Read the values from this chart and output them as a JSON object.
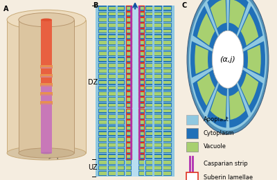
{
  "panel_a": {
    "label": "A",
    "z_label": "z",
    "r_label": "r",
    "bg_color": "#f5ede0",
    "outer_cyl_color": "#e8d5b5",
    "outer_cyl_edge": "#d0b888",
    "inner_cyl_color": "#dcc8a5",
    "inner_cyl_edge": "#c8a870",
    "root_top_color": "#e86040",
    "root_mid_color": "#e87850",
    "root_bot_color": "#c878b0",
    "band_color": "#c878b0",
    "band_edge_color": "#e89060"
  },
  "panel_b": {
    "label": "B",
    "apoplast_color": "#90c8e0",
    "cytoplasm_color": "#2878b8",
    "vacuole_color": "#a8d070",
    "casparian_color": "#b030b0",
    "suberin_color": "#e03020",
    "center_apoplast": "#b8ddf0",
    "dz_label": "DZ",
    "uz_label": "UZ",
    "arrow_color": "#1050a0",
    "n_total_rows": 30,
    "n_uz_rows": 3,
    "n_cell_cols_per_side": 4
  },
  "panel_c": {
    "label": "C",
    "apoplast_color": "#90c8e0",
    "cytoplasm_color": "#2070b8",
    "vacuole_color": "#a8d070",
    "outer_border_color": "#5090b8",
    "n_cells": 10,
    "label_text": "(α,j)",
    "legend_apoplast": "Apoplast",
    "legend_cytoplasm": "Cytoplasm",
    "legend_vacuole": "Vacuole",
    "legend_casparian": "Casparian strip",
    "legend_suberin": "Suberin lamellae",
    "cas_color": "#b030b0",
    "sub_color": "#e03020"
  }
}
